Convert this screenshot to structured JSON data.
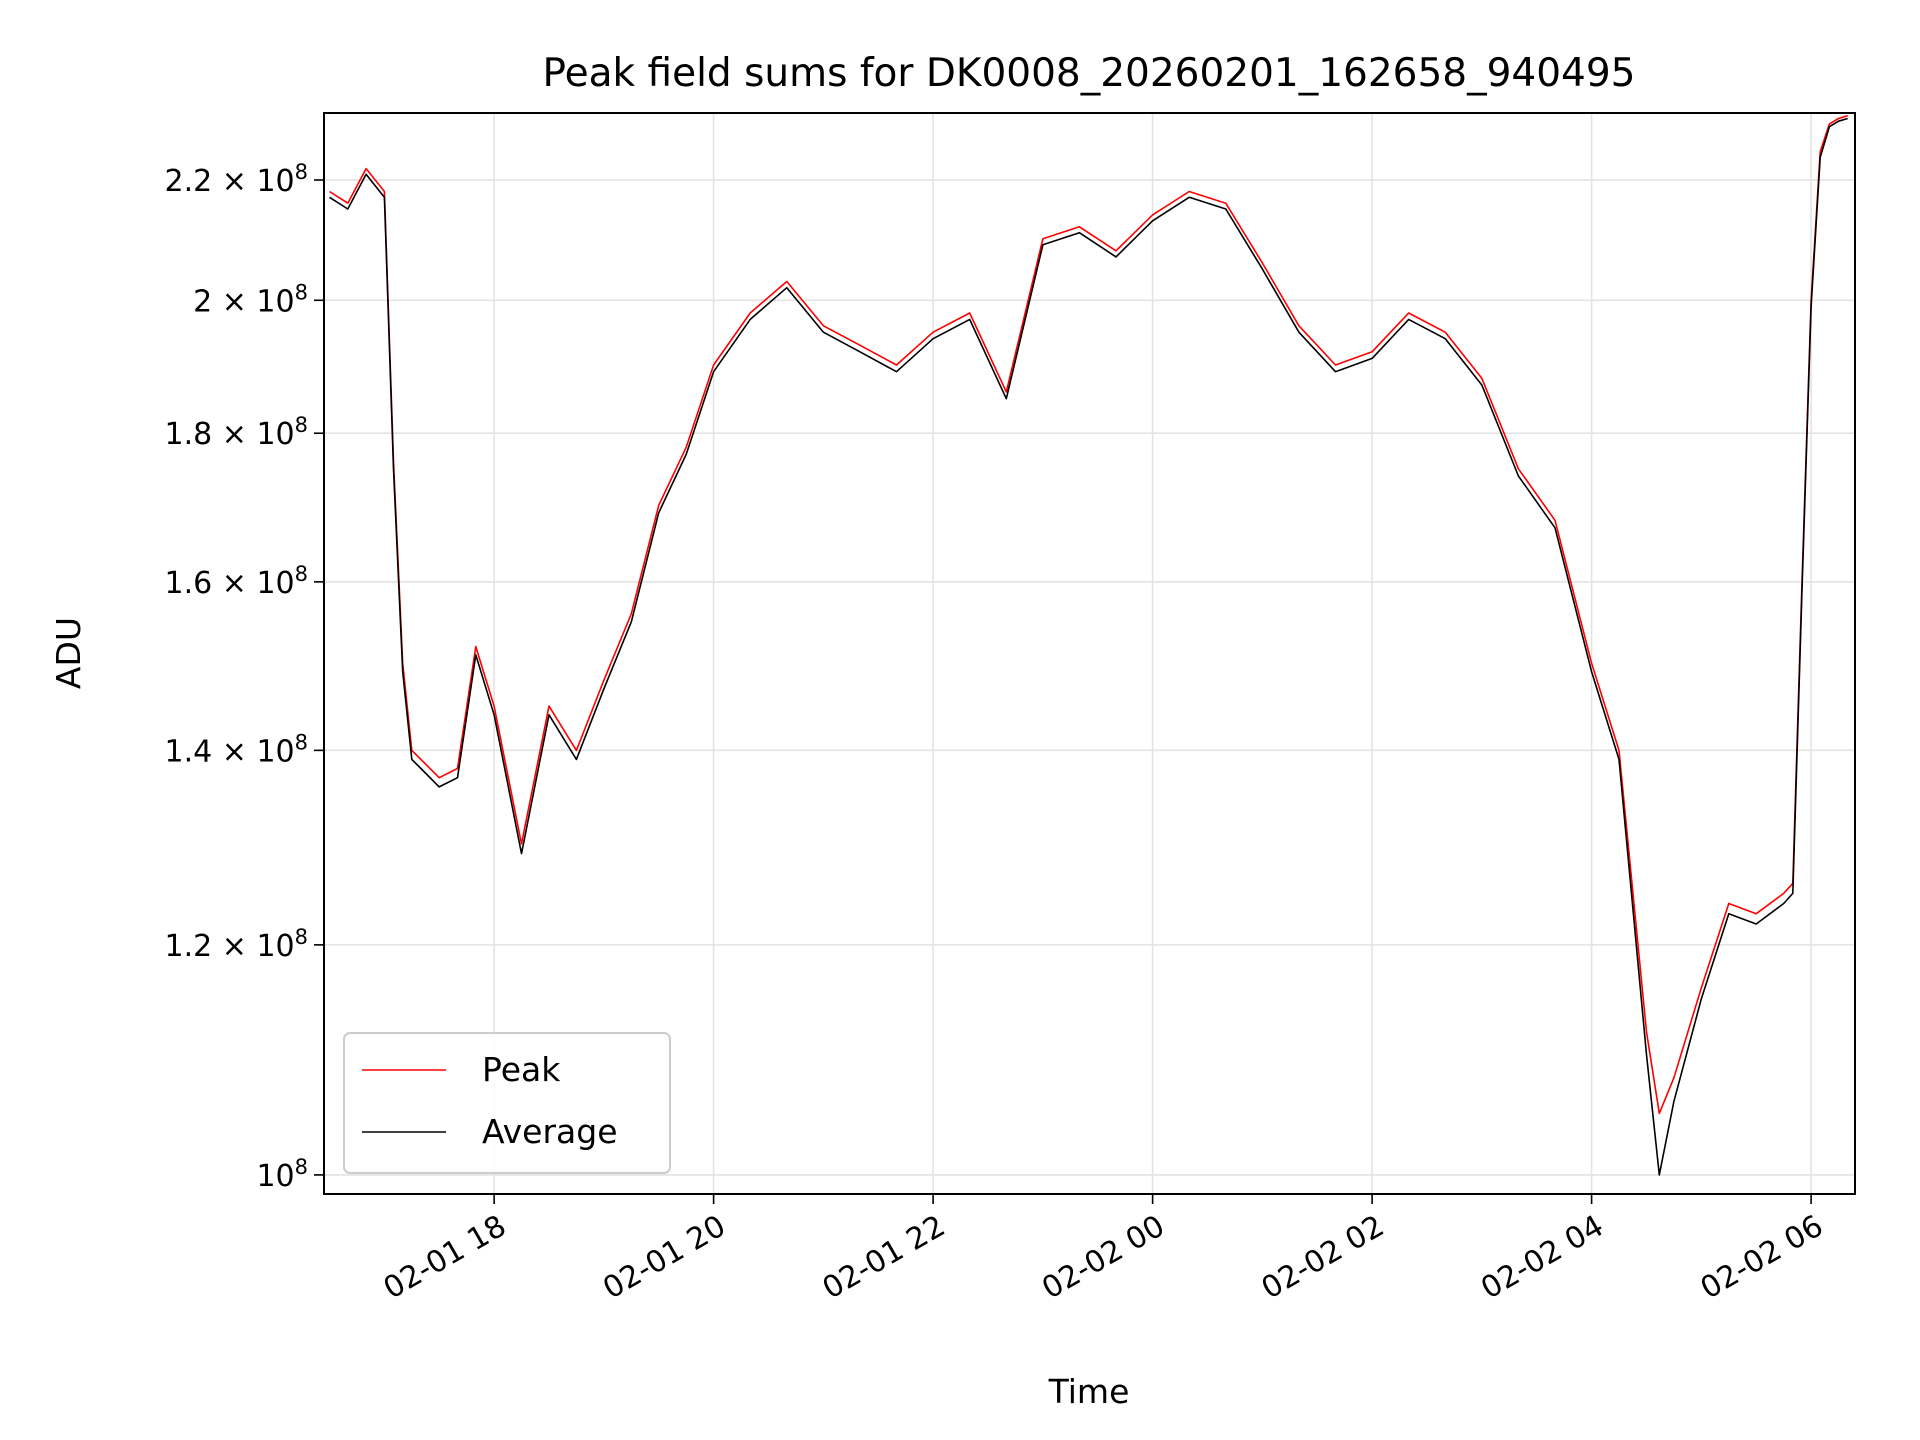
{
  "chart_data": {
    "type": "line",
    "title": "Peak field sums for DK0008_20260201_162658_940495",
    "xlabel": "Time",
    "ylabel": "ADU",
    "y_scale": "log",
    "ylim": [
      98500000,
      232000000
    ],
    "xlim": [
      "2026-02-01 16:27",
      "2026-02-02 06:24"
    ],
    "grid": true,
    "legend_position": "lower-left",
    "x_ticks": [
      {
        "t": "2026-02-01 18:00",
        "label": "02-01 18"
      },
      {
        "t": "2026-02-01 20:00",
        "label": "02-01 20"
      },
      {
        "t": "2026-02-01 22:00",
        "label": "02-01 22"
      },
      {
        "t": "2026-02-02 00:00",
        "label": "02-02 00"
      },
      {
        "t": "2026-02-02 02:00",
        "label": "02-02 02"
      },
      {
        "t": "2026-02-02 04:00",
        "label": "02-02 04"
      },
      {
        "t": "2026-02-02 06:00",
        "label": "02-02 06"
      }
    ],
    "y_ticks": [
      {
        "value": 100000000,
        "mant": "",
        "exp": "8",
        "base": "10"
      },
      {
        "value": 120000000,
        "mant": "1.2",
        "exp": "8",
        "base": "10"
      },
      {
        "value": 140000000,
        "mant": "1.4",
        "exp": "8",
        "base": "10"
      },
      {
        "value": 160000000,
        "mant": "1.6",
        "exp": "8",
        "base": "10"
      },
      {
        "value": 180000000,
        "mant": "1.8",
        "exp": "8",
        "base": "10"
      },
      {
        "value": 200000000,
        "mant": "2",
        "exp": "8",
        "base": "10"
      },
      {
        "value": 220000000,
        "mant": "2.2",
        "exp": "8",
        "base": "10"
      }
    ],
    "series": [
      {
        "name": "Peak",
        "color": "#ff0000",
        "x": [
          "2026-02-01 16:30",
          "2026-02-01 16:40",
          "2026-02-01 16:50",
          "2026-02-01 17:00",
          "2026-02-01 17:05",
          "2026-02-01 17:10",
          "2026-02-01 17:15",
          "2026-02-01 17:20",
          "2026-02-01 17:30",
          "2026-02-01 17:40",
          "2026-02-01 17:50",
          "2026-02-01 18:00",
          "2026-02-01 18:15",
          "2026-02-01 18:30",
          "2026-02-01 18:45",
          "2026-02-01 19:00",
          "2026-02-01 19:15",
          "2026-02-01 19:30",
          "2026-02-01 19:45",
          "2026-02-01 20:00",
          "2026-02-01 20:20",
          "2026-02-01 20:40",
          "2026-02-01 21:00",
          "2026-02-01 21:20",
          "2026-02-01 21:40",
          "2026-02-01 22:00",
          "2026-02-01 22:20",
          "2026-02-01 22:40",
          "2026-02-01 23:00",
          "2026-02-01 23:20",
          "2026-02-01 23:40",
          "2026-02-02 00:00",
          "2026-02-02 00:20",
          "2026-02-02 00:40",
          "2026-02-02 01:00",
          "2026-02-02 01:20",
          "2026-02-02 01:40",
          "2026-02-02 02:00",
          "2026-02-02 02:20",
          "2026-02-02 02:40",
          "2026-02-02 03:00",
          "2026-02-02 03:20",
          "2026-02-02 03:40",
          "2026-02-02 04:00",
          "2026-02-02 04:15",
          "2026-02-02 04:30",
          "2026-02-02 04:37",
          "2026-02-02 04:45",
          "2026-02-02 05:00",
          "2026-02-02 05:15",
          "2026-02-02 05:30",
          "2026-02-02 05:45",
          "2026-02-02 05:50",
          "2026-02-02 05:55",
          "2026-02-02 06:00",
          "2026-02-02 06:05",
          "2026-02-02 06:10",
          "2026-02-02 06:15",
          "2026-02-02 06:20"
        ],
        "y": [
          218000000,
          216000000,
          222000000,
          218000000,
          176000000,
          150000000,
          140000000,
          139000000,
          137000000,
          138000000,
          152000000,
          145000000,
          130000000,
          145000000,
          140000000,
          148000000,
          156000000,
          170000000,
          178000000,
          190000000,
          198000000,
          203000000,
          196000000,
          193000000,
          190000000,
          195000000,
          198000000,
          186000000,
          210000000,
          212000000,
          208000000,
          214000000,
          218000000,
          216000000,
          206000000,
          196000000,
          190000000,
          192000000,
          198000000,
          195000000,
          188000000,
          175000000,
          168000000,
          150000000,
          140000000,
          112000000,
          105000000,
          108000000,
          116000000,
          124000000,
          123000000,
          125000000,
          126000000,
          160000000,
          200000000,
          225000000,
          230000000,
          231000000,
          231500000
        ]
      },
      {
        "name": "Average",
        "color": "#000000",
        "x": [
          "2026-02-01 16:30",
          "2026-02-01 16:40",
          "2026-02-01 16:50",
          "2026-02-01 17:00",
          "2026-02-01 17:05",
          "2026-02-01 17:10",
          "2026-02-01 17:15",
          "2026-02-01 17:20",
          "2026-02-01 17:30",
          "2026-02-01 17:40",
          "2026-02-01 17:50",
          "2026-02-01 18:00",
          "2026-02-01 18:15",
          "2026-02-01 18:30",
          "2026-02-01 18:45",
          "2026-02-01 19:00",
          "2026-02-01 19:15",
          "2026-02-01 19:30",
          "2026-02-01 19:45",
          "2026-02-01 20:00",
          "2026-02-01 20:20",
          "2026-02-01 20:40",
          "2026-02-01 21:00",
          "2026-02-01 21:20",
          "2026-02-01 21:40",
          "2026-02-01 22:00",
          "2026-02-01 22:20",
          "2026-02-01 22:40",
          "2026-02-01 23:00",
          "2026-02-01 23:20",
          "2026-02-01 23:40",
          "2026-02-02 00:00",
          "2026-02-02 00:20",
          "2026-02-02 00:40",
          "2026-02-02 01:00",
          "2026-02-02 01:20",
          "2026-02-02 01:40",
          "2026-02-02 02:00",
          "2026-02-02 02:20",
          "2026-02-02 02:40",
          "2026-02-02 03:00",
          "2026-02-02 03:20",
          "2026-02-02 03:40",
          "2026-02-02 04:00",
          "2026-02-02 04:15",
          "2026-02-02 04:30",
          "2026-02-02 04:37",
          "2026-02-02 04:45",
          "2026-02-02 05:00",
          "2026-02-02 05:15",
          "2026-02-02 05:30",
          "2026-02-02 05:45",
          "2026-02-02 05:50",
          "2026-02-02 05:55",
          "2026-02-02 06:00",
          "2026-02-02 06:05",
          "2026-02-02 06:10",
          "2026-02-02 06:15",
          "2026-02-02 06:20"
        ],
        "y": [
          217000000,
          215000000,
          221000000,
          217000000,
          175000000,
          149000000,
          139000000,
          138000000,
          136000000,
          137000000,
          151000000,
          144000000,
          129000000,
          144000000,
          139000000,
          147000000,
          155000000,
          169000000,
          177000000,
          189000000,
          197000000,
          202000000,
          195000000,
          192000000,
          189000000,
          194000000,
          197000000,
          185000000,
          209000000,
          211000000,
          207000000,
          213000000,
          217000000,
          215000000,
          205000000,
          195000000,
          189000000,
          191000000,
          197000000,
          194000000,
          187000000,
          174000000,
          167000000,
          149000000,
          139000000,
          110000000,
          100000000,
          106000000,
          115000000,
          123000000,
          122000000,
          124000000,
          125000000,
          159000000,
          199000000,
          224000000,
          229500000,
          230500000,
          231000000
        ]
      }
    ]
  }
}
